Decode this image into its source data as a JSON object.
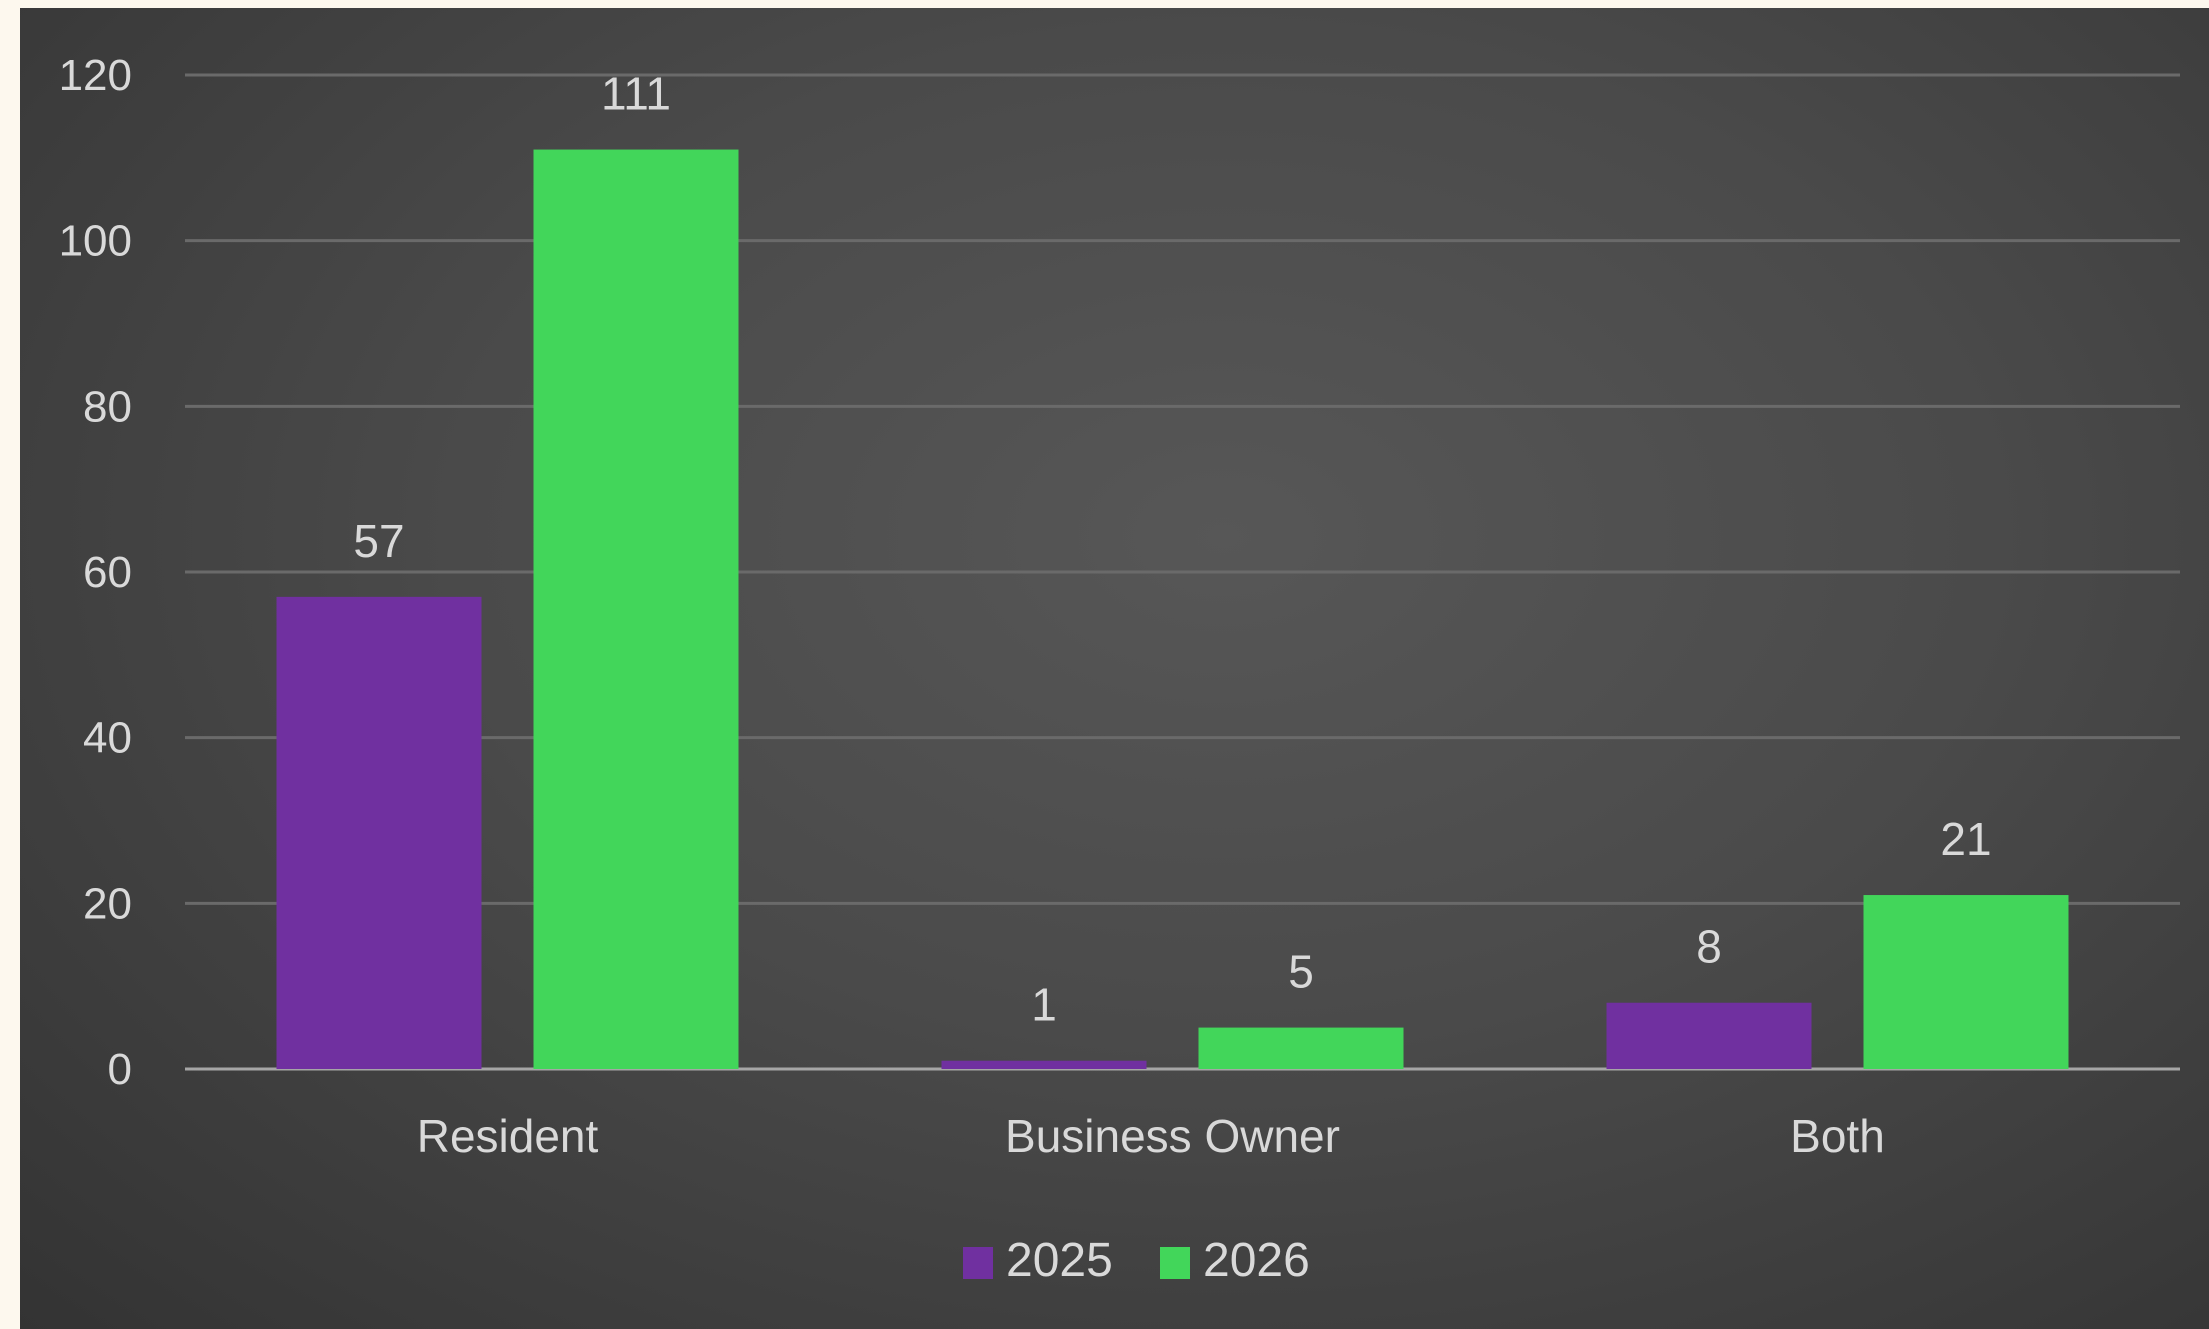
{
  "chart_data": {
    "type": "bar",
    "title": "",
    "xlabel": "",
    "ylabel": "",
    "categories": [
      "Resident",
      "Business Owner",
      "Both"
    ],
    "series": [
      {
        "name": "2025",
        "values": [
          57,
          1,
          8
        ],
        "color": "#7030a0"
      },
      {
        "name": "2026",
        "values": [
          111,
          5,
          21
        ],
        "color": "#42d65a"
      }
    ],
    "ylim": [
      0,
      120
    ],
    "yticks": [
      0,
      20,
      40,
      60,
      80,
      100,
      120
    ],
    "grid": true,
    "legend_position": "bottom",
    "background": "#4d4d4d"
  }
}
